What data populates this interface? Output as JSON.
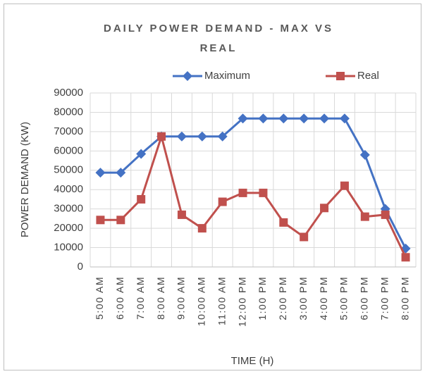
{
  "chart_data": {
    "type": "line",
    "title": "DAILY POWER DEMAND - MAX VS REAL",
    "xlabel": "TIME (H)",
    "ylabel": "POWER DEMAND (KW)",
    "categories": [
      "5:00 AM",
      "6:00 AM",
      "7:00 AM",
      "8:00 AM",
      "9:00 AM",
      "10:00 AM",
      "11:00 AM",
      "12:00 PM",
      "1:00 PM",
      "2:00 PM",
      "3:00 PM",
      "4:00 PM",
      "5:00 PM",
      "6:00 PM",
      "7:00 PM",
      "8:00 PM"
    ],
    "series": [
      {
        "name": "Maximum",
        "color": "#4472c4",
        "marker": "diamond",
        "values": [
          48800,
          48800,
          58500,
          67500,
          67500,
          67500,
          67500,
          76800,
          76800,
          76800,
          76800,
          76800,
          76800,
          58000,
          30000,
          9500
        ]
      },
      {
        "name": "Real",
        "color": "#c0504d",
        "marker": "square",
        "values": [
          24300,
          24300,
          35000,
          67500,
          27000,
          20000,
          33700,
          38300,
          38300,
          23000,
          15500,
          30500,
          42000,
          26000,
          27000,
          5000
        ]
      }
    ],
    "ylim": [
      0,
      90000
    ],
    "yticks": [
      0,
      10000,
      20000,
      30000,
      40000,
      50000,
      60000,
      70000,
      80000,
      90000
    ],
    "grid": true,
    "legend": "top"
  }
}
